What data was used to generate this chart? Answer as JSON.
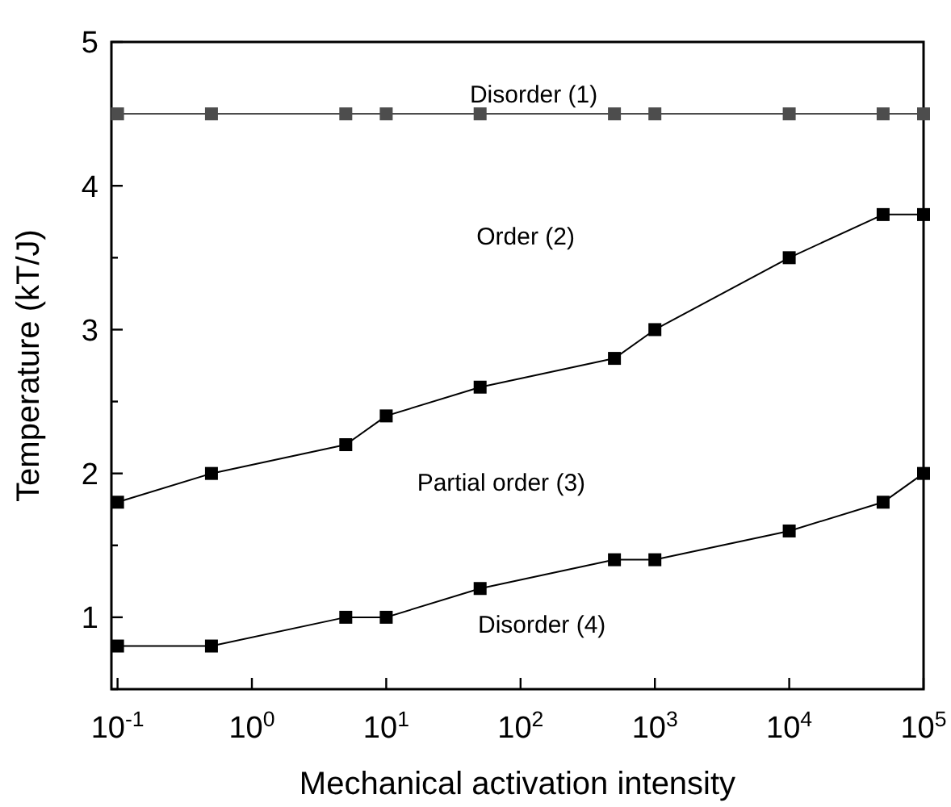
{
  "chart_data": {
    "type": "line",
    "xlabel": "Mechanical activation intensity",
    "ylabel": "Temperature (kT/J)",
    "x": [
      0.1,
      0.5,
      5,
      10,
      50,
      500,
      1000,
      10000,
      50000,
      100000
    ],
    "series": [
      {
        "color": "#4d4d4d",
        "values": [
          4.5,
          4.5,
          4.5,
          4.5,
          4.5,
          4.5,
          4.5,
          4.5,
          4.5,
          4.5
        ]
      },
      {
        "color": "#000000",
        "values": [
          1.8,
          2,
          2.2,
          2.4,
          2.6,
          2.8,
          3.0,
          3.5,
          3.8,
          3.8
        ]
      },
      {
        "color": "#000000",
        "values": [
          0.8,
          0.8,
          1,
          1,
          1.2,
          1.4,
          1.4,
          1.6,
          1.8,
          2.0
        ]
      }
    ],
    "log": "x",
    "xlim": [
      0.09,
      100000
    ],
    "xticks": [
      {
        "value": 0.1,
        "label": "10$^{-1}$"
      },
      {
        "value": 1,
        "label": "10$^{0}$"
      },
      {
        "value": 10,
        "label": "10$^{1}$"
      },
      {
        "value": 100,
        "label": "10$^{2}$"
      },
      {
        "value": 1000,
        "label": "10$^{3}$"
      },
      {
        "value": 10000,
        "label": "10$^{4}$"
      },
      {
        "value": 100000,
        "label": "10$^{5}$"
      }
    ],
    "ylim": [
      0.5,
      5
    ],
    "yticks": [
      {
        "value": 0.5,
        "label": null
      },
      1,
      {
        "value": 1.5,
        "label": null
      },
      2,
      {
        "value": 2.5,
        "label": null
      },
      3,
      {
        "value": 3.5,
        "label": null
      },
      4,
      {
        "value": 4.5,
        "label": null
      },
      5
    ],
    "annotations": [
      "Disorder (1)",
      "Order (2)",
      "Partial order (3)",
      "Disorder (4)"
    ],
    "grid": false,
    "marker": "square",
    "line_style": "solid"
  }
}
